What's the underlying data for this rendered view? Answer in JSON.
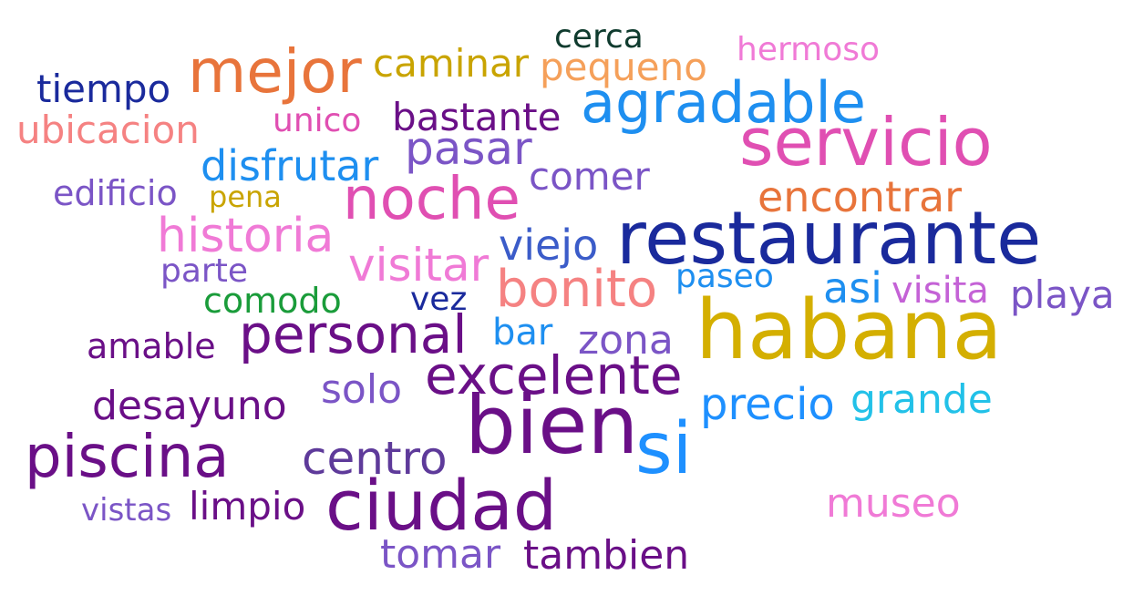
{
  "words": [
    {
      "id": "restaurante",
      "text": "restaurante",
      "color": "#1a2a9c"
    },
    {
      "id": "habana",
      "text": "habana",
      "color": "#d4af00"
    },
    {
      "id": "bien",
      "text": "bien",
      "color": "#6a0f87"
    },
    {
      "id": "servicio",
      "text": "servicio",
      "color": "#e04fb2"
    },
    {
      "id": "ciudad",
      "text": "ciudad",
      "color": "#6a0f87"
    },
    {
      "id": "si",
      "text": "si",
      "color": "#1e90ff"
    },
    {
      "id": "mejor",
      "text": "mejor",
      "color": "#e8743b"
    },
    {
      "id": "agradable",
      "text": "agradable",
      "color": "#1e8ff0"
    },
    {
      "id": "noche",
      "text": "noche",
      "color": "#e04fb2"
    },
    {
      "id": "piscina",
      "text": "piscina",
      "color": "#6a0f87"
    },
    {
      "id": "personal",
      "text": "personal",
      "color": "#6a0f87"
    },
    {
      "id": "excelente",
      "text": "excelente",
      "color": "#6a0f87"
    },
    {
      "id": "bonito",
      "text": "bonito",
      "color": "#f58282"
    },
    {
      "id": "pasar",
      "text": "pasar",
      "color": "#7b55c6"
    },
    {
      "id": "historia",
      "text": "historia",
      "color": "#f07ad6"
    },
    {
      "id": "visitar",
      "text": "visitar",
      "color": "#f07ad6"
    },
    {
      "id": "encontrar",
      "text": "encontrar",
      "color": "#e8743b"
    },
    {
      "id": "centro",
      "text": "centro",
      "color": "#5e3a9a"
    },
    {
      "id": "precio",
      "text": "precio",
      "color": "#1e90ff"
    },
    {
      "id": "viejo",
      "text": "viejo",
      "color": "#3b5cc9"
    },
    {
      "id": "disfrutar",
      "text": "disfrutar",
      "color": "#1e8ff0"
    },
    {
      "id": "zona",
      "text": "zona",
      "color": "#7b55c6"
    },
    {
      "id": "tomar",
      "text": "tomar",
      "color": "#7b55c6"
    },
    {
      "id": "tambien",
      "text": "tambien",
      "color": "#6a0f87"
    },
    {
      "id": "desayuno",
      "text": "desayuno",
      "color": "#6a0f87"
    },
    {
      "id": "museo",
      "text": "museo",
      "color": "#f07ad6"
    },
    {
      "id": "grande",
      "text": "grande",
      "color": "#22c1e8"
    },
    {
      "id": "caminar",
      "text": "caminar",
      "color": "#c9a400"
    },
    {
      "id": "pequeno",
      "text": "pequeno",
      "color": "#f5a05a"
    },
    {
      "id": "comer",
      "text": "comer",
      "color": "#7b55c6"
    },
    {
      "id": "asi",
      "text": "asi",
      "color": "#1e8ff0"
    },
    {
      "id": "bastante",
      "text": "bastante",
      "color": "#6a0f87"
    },
    {
      "id": "limpio",
      "text": "limpio",
      "color": "#6a0f87"
    },
    {
      "id": "solo",
      "text": "solo",
      "color": "#7b55c6"
    },
    {
      "id": "tiempo",
      "text": "tiempo",
      "color": "#1a2a9c"
    },
    {
      "id": "ubicacion",
      "text": "ubicacion",
      "color": "#f58282"
    },
    {
      "id": "playa",
      "text": "playa",
      "color": "#7b55c6"
    },
    {
      "id": "visita",
      "text": "visita",
      "color": "#c462d6"
    },
    {
      "id": "edificio",
      "text": "edificio",
      "color": "#7b55c6"
    },
    {
      "id": "amable",
      "text": "amable",
      "color": "#6a0f87"
    },
    {
      "id": "cerca",
      "text": "cerca",
      "color": "#0f3b2e"
    },
    {
      "id": "hermoso",
      "text": "hermoso",
      "color": "#f07ad6"
    },
    {
      "id": "unico",
      "text": "unico",
      "color": "#e04fb2"
    },
    {
      "id": "comodo",
      "text": "comodo",
      "color": "#1a9c3a"
    },
    {
      "id": "bar",
      "text": "bar",
      "color": "#1e8ff0"
    },
    {
      "id": "paseo",
      "text": "paseo",
      "color": "#1e8ff0"
    },
    {
      "id": "vez",
      "text": "vez",
      "color": "#1a2a9c"
    },
    {
      "id": "parte",
      "text": "parte",
      "color": "#7b55c6"
    },
    {
      "id": "vistas",
      "text": "vistas",
      "color": "#7b55c6"
    },
    {
      "id": "pena",
      "text": "pena",
      "color": "#c9a400"
    }
  ]
}
